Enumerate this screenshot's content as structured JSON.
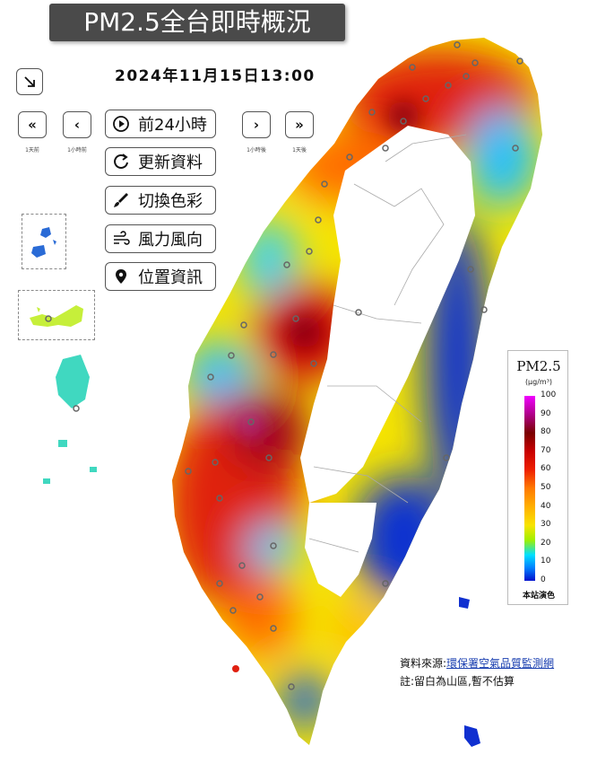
{
  "title": "PM2.5全台即時概況",
  "datetime": "2024年11月15日13:00",
  "nav": {
    "back_day": {
      "symbol": "«",
      "caption": "1天前"
    },
    "back_hour": {
      "symbol": "‹",
      "caption": "1小時前"
    },
    "fwd_hour": {
      "symbol": "›",
      "caption": "1小時後"
    },
    "fwd_day": {
      "symbol": "»",
      "caption": "1天後"
    }
  },
  "buttons": {
    "prev24": "前24小時",
    "refresh": "更新資料",
    "color": "切換色彩",
    "wind": "風力風向",
    "location": "位置資訊"
  },
  "legend": {
    "title": "PM2.5",
    "unit": "(μg/m³)",
    "ticks": [
      "100",
      "90",
      "80",
      "70",
      "60",
      "50",
      "40",
      "30",
      "20",
      "10",
      "0"
    ],
    "footer": "本站演色"
  },
  "source": {
    "label": "資料來源:",
    "link": "環保署空氣品質監測網"
  },
  "note": "註:留白為山區,暫不估算",
  "icons": {
    "collapse": "collapse-arrow-icon",
    "play": "play-circle-icon",
    "refresh": "refresh-icon",
    "brush": "paint-brush-icon",
    "wind": "wind-icon",
    "pin": "location-pin-icon"
  },
  "colors": {
    "very_high": "#a8001a",
    "high": "#e02010",
    "mid_high": "#ff6a00",
    "mid": "#ffb800",
    "low_mid": "#f5e400",
    "low": "#20d0ff",
    "very_low": "#1030d0",
    "extreme": "#b0208a"
  }
}
